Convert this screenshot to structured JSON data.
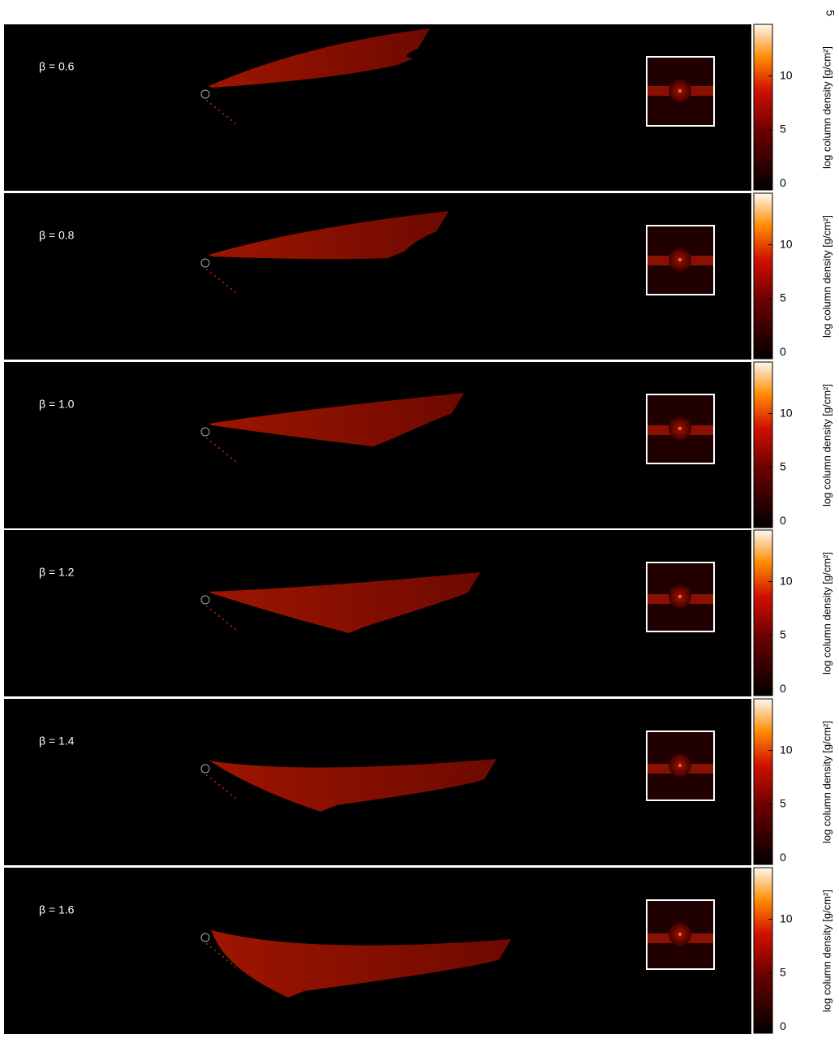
{
  "page_number": "5",
  "panels": [
    {
      "label": "β = 0.6"
    },
    {
      "label": "β = 0.8"
    },
    {
      "label": "β = 1.0"
    },
    {
      "label": "β = 1.2"
    },
    {
      "label": "β = 1.4"
    },
    {
      "label": "β = 1.6"
    }
  ],
  "colorbar": {
    "label": "log column density [g/cm²]",
    "lim": [
      -0.6,
      14.8
    ],
    "ticks": [
      0,
      5,
      10
    ]
  }
}
